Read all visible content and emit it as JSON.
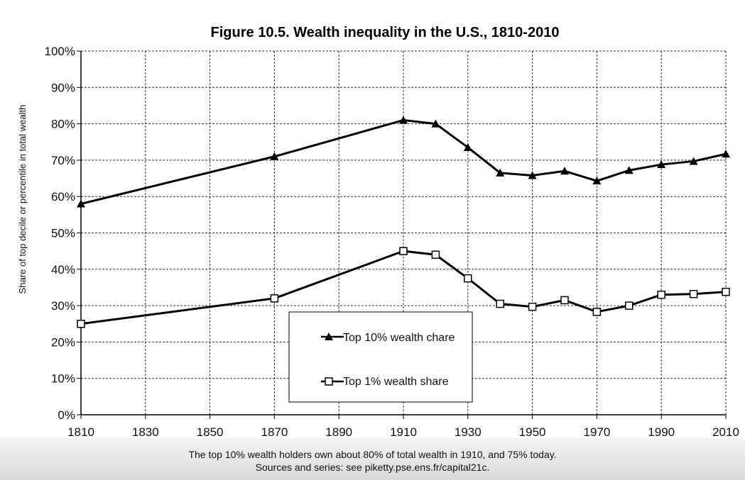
{
  "chart_data": {
    "type": "line",
    "title": "Figure 10.5. Wealth inequality in the U.S., 1810-2010",
    "ylabel": "Share of top decile or percentile in total wealth",
    "xlabel": "",
    "xlim": [
      1810,
      2010
    ],
    "ylim": [
      0,
      1.0
    ],
    "x_ticks": [
      1810,
      1830,
      1850,
      1870,
      1890,
      1910,
      1930,
      1950,
      1970,
      1990,
      2010
    ],
    "y_ticks": [
      0,
      0.1,
      0.2,
      0.3,
      0.4,
      0.5,
      0.6,
      0.7,
      0.8,
      0.9,
      1.0
    ],
    "y_tick_labels": [
      "0%",
      "10%",
      "20%",
      "30%",
      "40%",
      "50%",
      "60%",
      "70%",
      "80%",
      "90%",
      "100%"
    ],
    "grid": true,
    "legend_position": "bottom-center",
    "series": [
      {
        "name": "Top 10% wealth chare",
        "marker": "filled-triangle",
        "color": "#000000",
        "points": [
          [
            1810,
            0.58
          ],
          [
            1870,
            0.71
          ],
          [
            1910,
            0.81
          ],
          [
            1920,
            0.8
          ],
          [
            1930,
            0.735
          ],
          [
            1940,
            0.665
          ],
          [
            1950,
            0.658
          ],
          [
            1960,
            0.67
          ],
          [
            1970,
            0.643
          ],
          [
            1980,
            0.672
          ],
          [
            1990,
            0.688
          ],
          [
            2000,
            0.697
          ],
          [
            2010,
            0.717
          ]
        ]
      },
      {
        "name": "Top 1% wealth share",
        "marker": "open-square",
        "color": "#000000",
        "points": [
          [
            1810,
            0.25
          ],
          [
            1870,
            0.32
          ],
          [
            1910,
            0.45
          ],
          [
            1920,
            0.44
          ],
          [
            1930,
            0.375
          ],
          [
            1940,
            0.305
          ],
          [
            1950,
            0.297
          ],
          [
            1960,
            0.315
          ],
          [
            1970,
            0.283
          ],
          [
            1980,
            0.3
          ],
          [
            1990,
            0.33
          ],
          [
            2000,
            0.332
          ],
          [
            2010,
            0.338
          ]
        ]
      }
    ],
    "footnotes": [
      "The top 10% wealth holders own about 80% of total wealth in 1910, and 75% today.",
      "Sources and series: see piketty.pse.ens.fr/capital21c."
    ]
  }
}
